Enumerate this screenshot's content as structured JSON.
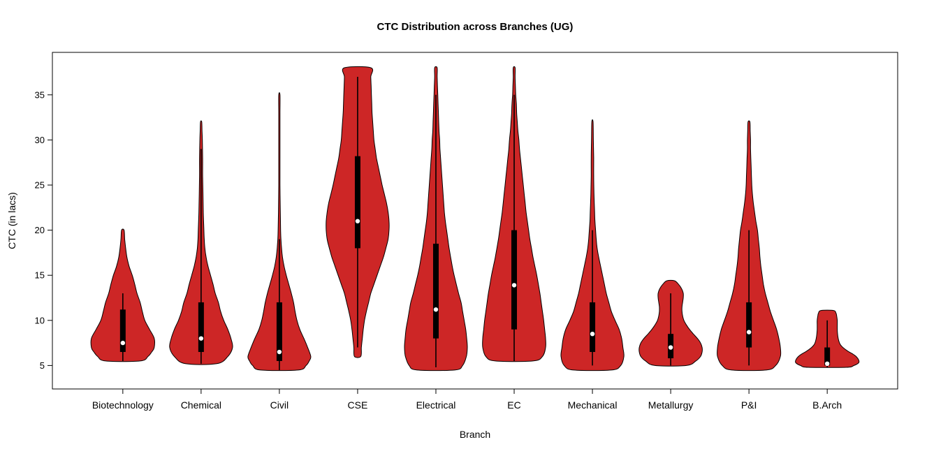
{
  "chart_data": {
    "type": "violin",
    "title": "CTC Distribution across Branches (UG)",
    "xlabel": "Branch",
    "ylabel": "CTC (in lacs)",
    "ylim": [
      4,
      39
    ],
    "yticks": [
      5,
      10,
      15,
      20,
      25,
      30,
      35
    ],
    "grid": false,
    "fill_color": "#CD2626",
    "outline_color": "#000000",
    "box_color": "#000000",
    "median_dot_color": "#ffffff",
    "categories": [
      "Biotechnology",
      "Chemical",
      "Civil",
      "CSE",
      "Electrical",
      "EC",
      "Mechanical",
      "Metallurgy",
      "P&I",
      "B.Arch"
    ],
    "series": [
      {
        "name": "Biotechnology",
        "min": 5.5,
        "max": 20,
        "median": 7.5,
        "q1": 6.5,
        "q3": 11.2,
        "whisker_low": 5.5,
        "whisker_high": 13,
        "shape": [
          [
            5.5,
            0.55
          ],
          [
            6,
            0.8
          ],
          [
            6.5,
            0.92
          ],
          [
            7,
            1.0
          ],
          [
            8,
            1.0
          ],
          [
            9,
            0.85
          ],
          [
            10,
            0.7
          ],
          [
            11,
            0.62
          ],
          [
            12,
            0.55
          ],
          [
            13,
            0.45
          ],
          [
            14,
            0.38
          ],
          [
            15,
            0.3
          ],
          [
            16,
            0.2
          ],
          [
            17,
            0.13
          ],
          [
            18,
            0.09
          ],
          [
            19,
            0.06
          ],
          [
            20,
            0.04
          ]
        ]
      },
      {
        "name": "Chemical",
        "min": 5.2,
        "max": 32,
        "median": 8,
        "q1": 6.5,
        "q3": 12,
        "whisker_low": 5.2,
        "whisker_high": 29,
        "shape": [
          [
            5.2,
            0.5
          ],
          [
            6,
            0.85
          ],
          [
            7,
            1.0
          ],
          [
            8,
            0.95
          ],
          [
            9,
            0.85
          ],
          [
            10,
            0.72
          ],
          [
            11,
            0.62
          ],
          [
            12,
            0.55
          ],
          [
            13,
            0.45
          ],
          [
            14,
            0.38
          ],
          [
            15,
            0.3
          ],
          [
            16,
            0.22
          ],
          [
            17,
            0.16
          ],
          [
            18,
            0.12
          ],
          [
            19,
            0.1
          ],
          [
            20,
            0.09
          ],
          [
            22,
            0.07
          ],
          [
            24,
            0.06
          ],
          [
            26,
            0.05
          ],
          [
            28,
            0.05
          ],
          [
            30,
            0.04
          ],
          [
            31,
            0.03
          ],
          [
            32,
            0.02
          ]
        ]
      },
      {
        "name": "Civil",
        "min": 4.5,
        "max": 35,
        "median": 6.5,
        "q1": 5.5,
        "q3": 12,
        "whisker_low": 4.5,
        "whisker_high": 19,
        "shape": [
          [
            4.5,
            0.6
          ],
          [
            5,
            0.85
          ],
          [
            5.5,
            0.95
          ],
          [
            6,
            1.0
          ],
          [
            7,
            0.9
          ],
          [
            8,
            0.78
          ],
          [
            9,
            0.65
          ],
          [
            10,
            0.56
          ],
          [
            11,
            0.5
          ],
          [
            12,
            0.45
          ],
          [
            13,
            0.38
          ],
          [
            14,
            0.3
          ],
          [
            15,
            0.22
          ],
          [
            16,
            0.15
          ],
          [
            17,
            0.1
          ],
          [
            18,
            0.07
          ],
          [
            19,
            0.05
          ],
          [
            20,
            0.04
          ],
          [
            22,
            0.03
          ],
          [
            25,
            0.02
          ],
          [
            28,
            0.02
          ],
          [
            31,
            0.02
          ],
          [
            33,
            0.02
          ],
          [
            35,
            0.02
          ]
        ]
      },
      {
        "name": "CSE",
        "min": 6,
        "max": 38,
        "median": 21,
        "q1": 18,
        "q3": 28.2,
        "whisker_low": 7,
        "whisker_high": 37,
        "shape": [
          [
            6,
            0.1
          ],
          [
            7,
            0.12
          ],
          [
            8,
            0.15
          ],
          [
            9,
            0.18
          ],
          [
            10,
            0.22
          ],
          [
            11,
            0.28
          ],
          [
            12,
            0.35
          ],
          [
            13,
            0.42
          ],
          [
            14,
            0.52
          ],
          [
            15,
            0.62
          ],
          [
            16,
            0.72
          ],
          [
            17,
            0.82
          ],
          [
            18,
            0.9
          ],
          [
            19,
            0.97
          ],
          [
            20,
            1.0
          ],
          [
            21,
            1.0
          ],
          [
            22,
            0.97
          ],
          [
            23,
            0.92
          ],
          [
            24,
            0.85
          ],
          [
            25,
            0.78
          ],
          [
            26,
            0.72
          ],
          [
            27,
            0.66
          ],
          [
            28,
            0.6
          ],
          [
            29,
            0.56
          ],
          [
            30,
            0.52
          ],
          [
            31,
            0.5
          ],
          [
            32,
            0.48
          ],
          [
            33,
            0.46
          ],
          [
            34,
            0.45
          ],
          [
            35,
            0.44
          ],
          [
            36,
            0.43
          ],
          [
            37,
            0.42
          ],
          [
            38,
            0.42
          ]
        ]
      },
      {
        "name": "Electrical",
        "min": 4.5,
        "max": 38,
        "median": 11.2,
        "q1": 8,
        "q3": 18.5,
        "whisker_low": 4.8,
        "whisker_high": 35,
        "shape": [
          [
            4.5,
            0.6
          ],
          [
            5,
            0.85
          ],
          [
            6,
            0.97
          ],
          [
            7,
            1.0
          ],
          [
            8,
            0.98
          ],
          [
            9,
            0.95
          ],
          [
            10,
            0.9
          ],
          [
            11,
            0.85
          ],
          [
            12,
            0.8
          ],
          [
            13,
            0.72
          ],
          [
            14,
            0.65
          ],
          [
            15,
            0.58
          ],
          [
            16,
            0.52
          ],
          [
            17,
            0.47
          ],
          [
            18,
            0.42
          ],
          [
            19,
            0.38
          ],
          [
            20,
            0.34
          ],
          [
            21,
            0.3
          ],
          [
            22,
            0.27
          ],
          [
            23,
            0.25
          ],
          [
            24,
            0.23
          ],
          [
            25,
            0.21
          ],
          [
            26,
            0.19
          ],
          [
            27,
            0.17
          ],
          [
            28,
            0.15
          ],
          [
            29,
            0.13
          ],
          [
            30,
            0.12
          ],
          [
            31,
            0.1
          ],
          [
            32,
            0.09
          ],
          [
            33,
            0.08
          ],
          [
            34,
            0.07
          ],
          [
            35,
            0.06
          ],
          [
            36,
            0.05
          ],
          [
            37,
            0.04
          ],
          [
            38,
            0.04
          ]
        ]
      },
      {
        "name": "EC",
        "min": 5.5,
        "max": 38,
        "median": 13.9,
        "q1": 9,
        "q3": 20,
        "whisker_low": 5.5,
        "whisker_high": 35,
        "shape": [
          [
            5.5,
            0.6
          ],
          [
            6,
            0.9
          ],
          [
            7,
            1.0
          ],
          [
            8,
            1.0
          ],
          [
            9,
            0.97
          ],
          [
            10,
            0.94
          ],
          [
            11,
            0.9
          ],
          [
            12,
            0.86
          ],
          [
            13,
            0.82
          ],
          [
            14,
            0.77
          ],
          [
            15,
            0.72
          ],
          [
            16,
            0.66
          ],
          [
            17,
            0.6
          ],
          [
            18,
            0.55
          ],
          [
            19,
            0.5
          ],
          [
            20,
            0.46
          ],
          [
            21,
            0.42
          ],
          [
            22,
            0.38
          ],
          [
            23,
            0.35
          ],
          [
            24,
            0.32
          ],
          [
            25,
            0.29
          ],
          [
            26,
            0.26
          ],
          [
            27,
            0.23
          ],
          [
            28,
            0.2
          ],
          [
            29,
            0.17
          ],
          [
            30,
            0.15
          ],
          [
            31,
            0.12
          ],
          [
            32,
            0.1
          ],
          [
            33,
            0.08
          ],
          [
            34,
            0.07
          ],
          [
            35,
            0.05
          ],
          [
            36,
            0.04
          ],
          [
            37,
            0.03
          ],
          [
            38,
            0.03
          ]
        ]
      },
      {
        "name": "Mechanical",
        "min": 4.5,
        "max": 32,
        "median": 8.5,
        "q1": 6.5,
        "q3": 12,
        "whisker_low": 5,
        "whisker_high": 20,
        "shape": [
          [
            4.5,
            0.6
          ],
          [
            5,
            0.9
          ],
          [
            6,
            1.0
          ],
          [
            7,
            0.97
          ],
          [
            8,
            0.93
          ],
          [
            9,
            0.85
          ],
          [
            10,
            0.72
          ],
          [
            11,
            0.6
          ],
          [
            12,
            0.52
          ],
          [
            13,
            0.44
          ],
          [
            14,
            0.38
          ],
          [
            15,
            0.32
          ],
          [
            16,
            0.26
          ],
          [
            17,
            0.2
          ],
          [
            18,
            0.15
          ],
          [
            19,
            0.12
          ],
          [
            20,
            0.1
          ],
          [
            21,
            0.08
          ],
          [
            22,
            0.07
          ],
          [
            24,
            0.05
          ],
          [
            26,
            0.04
          ],
          [
            28,
            0.04
          ],
          [
            30,
            0.03
          ],
          [
            32,
            0.02
          ]
        ]
      },
      {
        "name": "Metallurgy",
        "min": 5,
        "max": 14.4,
        "median": 7,
        "q1": 5.8,
        "q3": 8.5,
        "whisker_low": 5,
        "whisker_high": 13,
        "shape": [
          [
            5,
            0.5
          ],
          [
            5.5,
            0.8
          ],
          [
            6,
            0.95
          ],
          [
            6.5,
            1.0
          ],
          [
            7,
            1.0
          ],
          [
            7.5,
            0.95
          ],
          [
            8,
            0.85
          ],
          [
            8.5,
            0.72
          ],
          [
            9,
            0.6
          ],
          [
            9.5,
            0.5
          ],
          [
            10,
            0.42
          ],
          [
            10.5,
            0.38
          ],
          [
            11,
            0.36
          ],
          [
            11.5,
            0.36
          ],
          [
            12,
            0.38
          ],
          [
            12.5,
            0.4
          ],
          [
            13,
            0.4
          ],
          [
            13.5,
            0.35
          ],
          [
            14,
            0.25
          ],
          [
            14.4,
            0.12
          ]
        ]
      },
      {
        "name": "P&I",
        "min": 4.5,
        "max": 32,
        "median": 8.7,
        "q1": 7,
        "q3": 12,
        "whisker_low": 5,
        "whisker_high": 20,
        "shape": [
          [
            4.5,
            0.55
          ],
          [
            5,
            0.85
          ],
          [
            6,
            1.0
          ],
          [
            7,
            1.0
          ],
          [
            8,
            0.95
          ],
          [
            9,
            0.88
          ],
          [
            10,
            0.78
          ],
          [
            11,
            0.68
          ],
          [
            12,
            0.6
          ],
          [
            13,
            0.52
          ],
          [
            14,
            0.46
          ],
          [
            15,
            0.42
          ],
          [
            16,
            0.38
          ],
          [
            17,
            0.35
          ],
          [
            18,
            0.33
          ],
          [
            19,
            0.3
          ],
          [
            20,
            0.27
          ],
          [
            21,
            0.22
          ],
          [
            22,
            0.18
          ],
          [
            23,
            0.14
          ],
          [
            24,
            0.11
          ],
          [
            25,
            0.09
          ],
          [
            26,
            0.08
          ],
          [
            27,
            0.07
          ],
          [
            28,
            0.06
          ],
          [
            29,
            0.05
          ],
          [
            30,
            0.05
          ],
          [
            31,
            0.04
          ],
          [
            32,
            0.03
          ]
        ]
      },
      {
        "name": "B.Arch",
        "min": 4.8,
        "max": 11.1,
        "median": 5.2,
        "q1": 5,
        "q3": 7,
        "whisker_low": 4.8,
        "whisker_high": 10,
        "shape": [
          [
            4.8,
            0.6
          ],
          [
            5,
            0.85
          ],
          [
            5.3,
            1.0
          ],
          [
            5.6,
            1.0
          ],
          [
            6,
            0.92
          ],
          [
            6.3,
            0.8
          ],
          [
            6.6,
            0.65
          ],
          [
            7,
            0.5
          ],
          [
            7.3,
            0.42
          ],
          [
            7.6,
            0.38
          ],
          [
            8,
            0.35
          ],
          [
            8.5,
            0.33
          ],
          [
            9,
            0.32
          ],
          [
            9.5,
            0.32
          ],
          [
            10,
            0.32
          ],
          [
            10.5,
            0.3
          ],
          [
            10.8,
            0.28
          ],
          [
            11.1,
            0.2
          ]
        ]
      }
    ]
  }
}
